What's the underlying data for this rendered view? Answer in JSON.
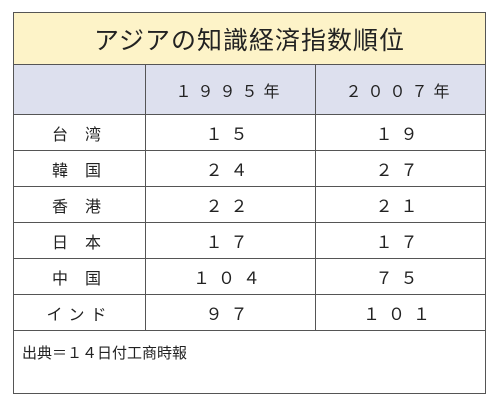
{
  "title": "アジアの知識経済指数順位",
  "header": {
    "col0": "",
    "col1": "１９９５年",
    "col2": "２００７年"
  },
  "rows": [
    {
      "name": "台 湾",
      "y1995": "１５",
      "y2007": "１９"
    },
    {
      "name": "韓 国",
      "y1995": "２４",
      "y2007": "２７"
    },
    {
      "name": "香 港",
      "y1995": "２２",
      "y2007": "２１"
    },
    {
      "name": "日 本",
      "y1995": "１７",
      "y2007": "１７"
    },
    {
      "name": "中 国",
      "y1995": "１０４",
      "y2007": "７５"
    },
    {
      "name": "インド",
      "y1995": "９７",
      "y2007": "１０１"
    }
  ],
  "source": "出典＝１４日付工商時報",
  "colors": {
    "title_bg": "#fdf3c8",
    "header_bg": "#dde0ee",
    "border": "#555555"
  }
}
